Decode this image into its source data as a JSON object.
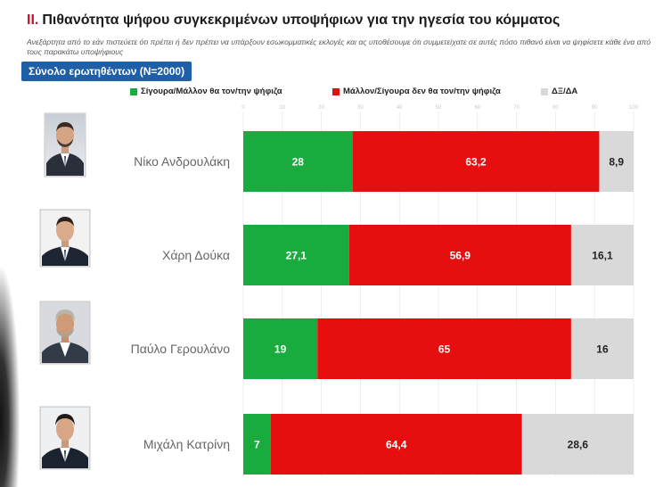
{
  "header": {
    "title_prefix": "II.",
    "title": "Πιθανότητα ψήφου συγκεκριμένων υποψήφιων για την ηγεσία του κόμματος",
    "subtitle": "Ανεξάρτητα από το εάν πιστεύετε ότι πρέπει ή δεν πρέπει να υπάρξουν εσωκομματικές εκλογές και ας υποθέσουμε ότι συμμετείχατε σε αυτές πόσο πιθανό είναι να ψηφίσετε κάθε ένα από τους παρακάτω υποψήφιους",
    "sample_label": "Σύνολο ερωτηθέντων (N=2000)"
  },
  "colors": {
    "positive": "#1aab3f",
    "negative": "#e60e0e",
    "dk_na": "#d9d9d9",
    "badge": "#1f5fa8",
    "accent_red": "#c8102e"
  },
  "chart_data": {
    "type": "bar",
    "orientation": "horizontal",
    "stacked": true,
    "categories": [
      "Νίκο Ανδρουλάκη",
      "Χάρη Δούκα",
      "Παύλο Γερουλάνο",
      "Μιχάλη Κατρίνη"
    ],
    "series": [
      {
        "name": "Σίγουρα/Μάλλον θα τον/την ψήφιζα",
        "values": [
          28,
          27.1,
          19,
          7
        ]
      },
      {
        "name": "Μάλλον/Σίγουρα δεν θα τον/την ψήφιζα",
        "values": [
          63.2,
          56.9,
          65,
          64.4
        ]
      },
      {
        "name": "ΔΞ/ΔΑ",
        "values": [
          8.9,
          16.1,
          16,
          28.6
        ]
      }
    ],
    "value_labels": [
      [
        "28",
        "27,1",
        "19",
        "7"
      ],
      [
        "63,2",
        "56,9",
        "65",
        "64,4"
      ],
      [
        "8,9",
        "16,1",
        "16",
        "28,6"
      ]
    ],
    "ticks": [
      "0",
      "10",
      "20",
      "30",
      "40",
      "50",
      "60",
      "70",
      "80",
      "90",
      "100"
    ],
    "xlim": [
      0,
      100
    ],
    "legend_position": "top",
    "grid": true
  }
}
